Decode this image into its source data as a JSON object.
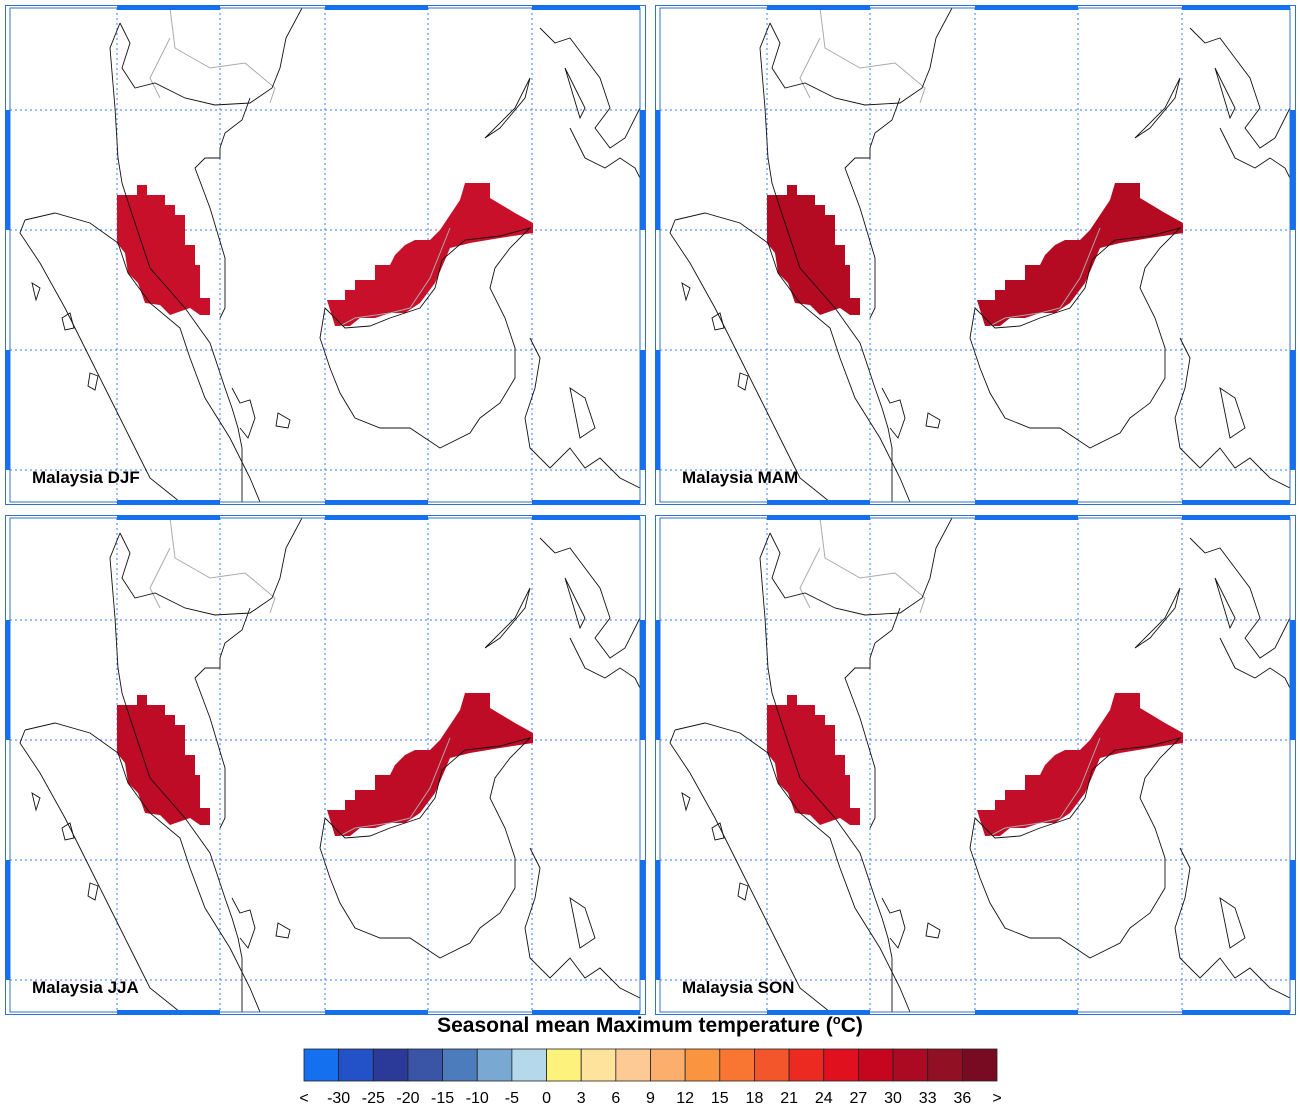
{
  "panels": [
    {
      "label": "Malaysia DJF",
      "fill": "#c8102a"
    },
    {
      "label": "Malaysia MAM",
      "fill": "#b40a22"
    },
    {
      "label": "Malaysia JJA",
      "fill": "#be0c26"
    },
    {
      "label": "Malaysia SON",
      "fill": "#c20e28"
    }
  ],
  "colorbar": {
    "title": [
      "Seasonal mean Maximum temperature (",
      "o",
      "C)"
    ],
    "labels": [
      "<",
      -30,
      -25,
      -20,
      -15,
      -10,
      -5,
      0,
      3,
      6,
      9,
      12,
      15,
      18,
      21,
      24,
      27,
      30,
      33,
      36,
      ">"
    ],
    "colors": [
      "#1570f0",
      "#2352c8",
      "#2b3a98",
      "#3b55a6",
      "#4d7cbd",
      "#79a8d3",
      "#b6d8eb",
      "#fdf27c",
      "#fde39b",
      "#fdca96",
      "#fcae6c",
      "#fa9440",
      "#f97632",
      "#f4562c",
      "#ed2a22",
      "#e1101e",
      "#c5061e",
      "#ab0a22",
      "#921024",
      "#780a22"
    ]
  }
}
